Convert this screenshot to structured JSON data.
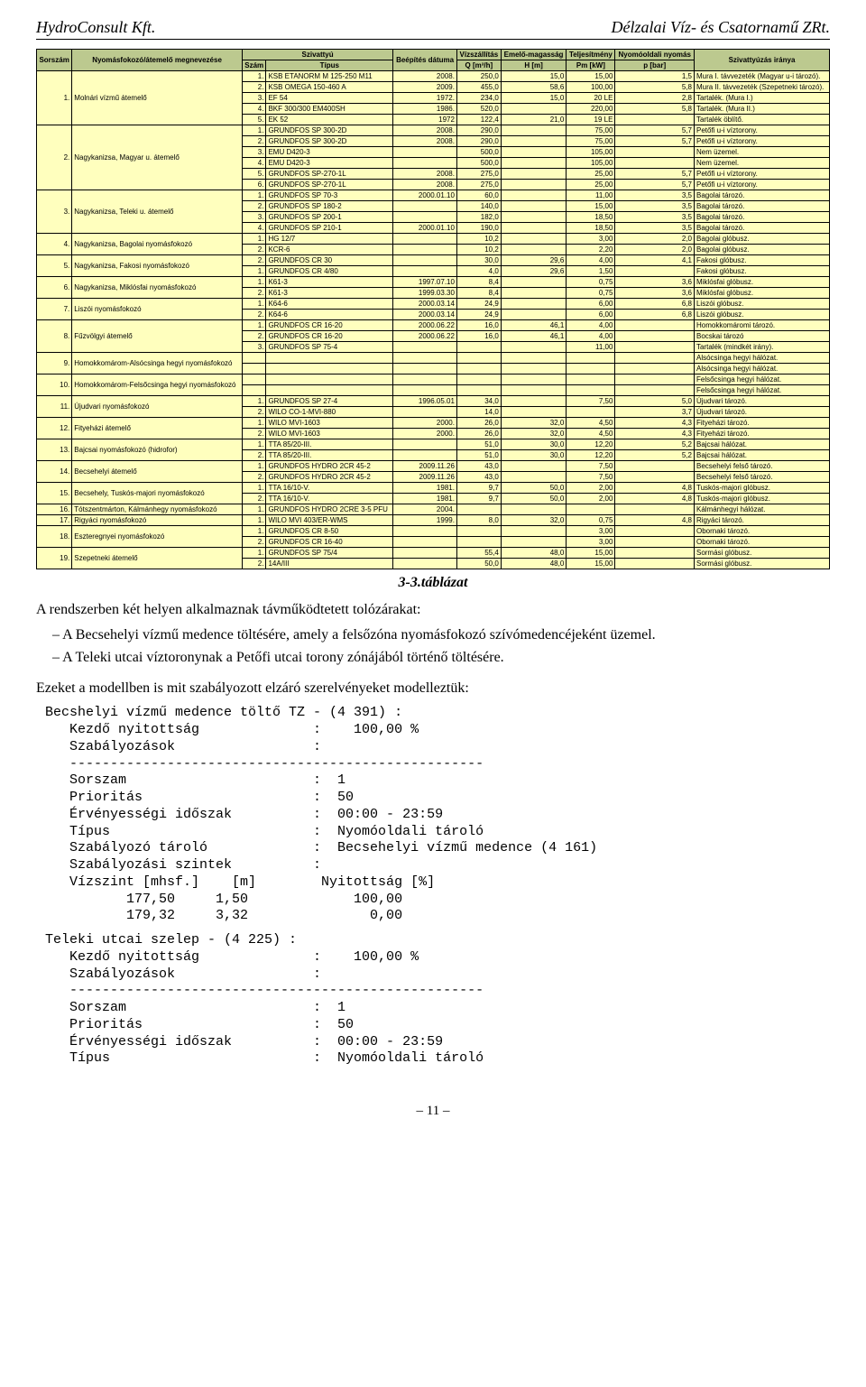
{
  "header": {
    "left": "HydroConsult Kft.",
    "right": "Délzalai Víz- és Csatornamű ZRt."
  },
  "table": {
    "head": {
      "sorszam": "Sorszám",
      "megnevezes": "Nyomásfokozó/átemelő megnevezése",
      "szivattyu": "Szivattyú",
      "szam": "Szám",
      "tipus": "Típus",
      "beepites": "Beépítés dátuma",
      "vizszallitas": "Vízszállítás",
      "q": "Q [m³/h]",
      "emelo": "Emelő-magasság",
      "h": "H [m]",
      "telj": "Teljesítmény",
      "p": "Pm [kW]",
      "nyomas": "Nyomóoldali nyomás",
      "pbar": "p [bar]",
      "irany": "Szivattyúzás iránya"
    },
    "groups": [
      {
        "n": "1.",
        "name": "Molnári vízmű átemelő",
        "rows": [
          {
            "sz": "1.",
            "tip": "KSB ETANORM M 125-250 M11",
            "dat": "2008.",
            "q": "250,0",
            "h": "15,0",
            "pk": "15,00",
            "pb": "1,5",
            "ir": "Mura I. távvezeték (Magyar u-i tározó)."
          },
          {
            "sz": "2.",
            "tip": "KSB OMEGA 150-460 A",
            "dat": "2009.",
            "q": "455,0",
            "h": "58,6",
            "pk": "100,00",
            "pb": "5,8",
            "ir": "Mura II. távvezeték (Szepetneki tározó)."
          },
          {
            "sz": "3.",
            "tip": "EF 54",
            "dat": "1972.",
            "q": "234,0",
            "h": "15,0",
            "pk": "20 LE",
            "pb": "2,8",
            "ir": "Tartalék. (Mura I.)"
          },
          {
            "sz": "4.",
            "tip": "BKF 300/300 EM400SH",
            "dat": "1986.",
            "q": "520,0",
            "h": "",
            "pk": "220,00",
            "pb": "5,8",
            "ir": "Tartalék. (Mura II.)"
          },
          {
            "sz": "5.",
            "tip": "EK 52",
            "dat": "1972",
            "q": "122,4",
            "h": "21,0",
            "pk": "19 LE",
            "pb": "",
            "ir": "Tartalék öblítő."
          }
        ]
      },
      {
        "n": "2.",
        "name": "Nagykanizsa, Magyar u. átemelő",
        "rows": [
          {
            "sz": "1.",
            "tip": "GRUNDFOS SP 300-2D",
            "dat": "2008.",
            "q": "290,0",
            "h": "",
            "pk": "75,00",
            "pb": "5,7",
            "ir": "Petőfi u-i víztorony."
          },
          {
            "sz": "2.",
            "tip": "GRUNDFOS SP 300-2D",
            "dat": "2008.",
            "q": "290,0",
            "h": "",
            "pk": "75,00",
            "pb": "5,7",
            "ir": "Petőfi u-i víztorony."
          },
          {
            "sz": "3.",
            "tip": "EMU D420-3",
            "dat": "",
            "q": "500,0",
            "h": "",
            "pk": "105,00",
            "pb": "",
            "ir": "Nem üzemel."
          },
          {
            "sz": "4.",
            "tip": "EMU D420-3",
            "dat": "",
            "q": "500,0",
            "h": "",
            "pk": "105,00",
            "pb": "",
            "ir": "Nem üzemel."
          },
          {
            "sz": "5.",
            "tip": "GRUNDFOS SP-270-1L",
            "dat": "2008.",
            "q": "275,0",
            "h": "",
            "pk": "25,00",
            "pb": "5,7",
            "ir": "Petőfi u-i víztorony."
          },
          {
            "sz": "6.",
            "tip": "GRUNDFOS SP-270-1L",
            "dat": "2008.",
            "q": "275,0",
            "h": "",
            "pk": "25,00",
            "pb": "5,7",
            "ir": "Petőfi u-i víztorony."
          }
        ]
      },
      {
        "n": "3.",
        "name": "Nagykanizsa, Teleki u. átemelő",
        "rows": [
          {
            "sz": "1.",
            "tip": "GRUNDFOS SP 70-3",
            "dat": "2000.01.10",
            "q": "60,0",
            "h": "",
            "pk": "11,00",
            "pb": "3,5",
            "ir": "Bagolai tározó."
          },
          {
            "sz": "2.",
            "tip": "GRUNDFOS SP 180-2",
            "dat": "",
            "q": "140,0",
            "h": "",
            "pk": "15,00",
            "pb": "3,5",
            "ir": "Bagolai tározó."
          },
          {
            "sz": "3.",
            "tip": "GRUNDFOS SP 200-1",
            "dat": "",
            "q": "182,0",
            "h": "",
            "pk": "18,50",
            "pb": "3,5",
            "ir": "Bagolai tározó."
          },
          {
            "sz": "4.",
            "tip": "GRUNDFOS SP 210-1",
            "dat": "2000.01.10",
            "q": "190,0",
            "h": "",
            "pk": "18,50",
            "pb": "3,5",
            "ir": "Bagolai tározó."
          }
        ]
      },
      {
        "n": "4.",
        "name": "Nagykanizsa, Bagolai nyomásfokozó",
        "rows": [
          {
            "sz": "1.",
            "tip": "HG 12/7",
            "dat": "",
            "q": "10,2",
            "h": "",
            "pk": "3,00",
            "pb": "2,0",
            "ir": "Bagolai glóbusz."
          },
          {
            "sz": "2.",
            "tip": "KCR-6",
            "dat": "",
            "q": "10,2",
            "h": "",
            "pk": "2,20",
            "pb": "2,0",
            "ir": "Bagolai glóbusz."
          }
        ]
      },
      {
        "n": "5.",
        "name": "Nagykanizsa, Fakosi nyomásfokozó",
        "rows": [
          {
            "sz": "2.",
            "tip": "GRUNDFOS CR 30",
            "dat": "",
            "q": "30,0",
            "h": "29,6",
            "pk": "4,00",
            "pb": "4,1",
            "ir": "Fakosi glóbusz."
          },
          {
            "sz": "1.",
            "tip": "GRUNDFOS CR 4/80",
            "dat": "",
            "q": "4,0",
            "h": "29,6",
            "pk": "1,50",
            "pb": "",
            "ir": "Fakosi glóbusz."
          }
        ]
      },
      {
        "n": "6.",
        "name": "Nagykanizsa, Miklósfai nyomásfokozó",
        "rows": [
          {
            "sz": "1.",
            "tip": "K61-3",
            "dat": "1997.07.10",
            "q": "8,4",
            "h": "",
            "pk": "0,75",
            "pb": "3,6",
            "ir": "Miklósfai glóbusz."
          },
          {
            "sz": "2.",
            "tip": "K61-3",
            "dat": "1999.03.30",
            "q": "8,4",
            "h": "",
            "pk": "0,75",
            "pb": "3,6",
            "ir": "Miklósfai glóbusz."
          }
        ]
      },
      {
        "n": "7.",
        "name": "Liszói nyomásfokozó",
        "rows": [
          {
            "sz": "1.",
            "tip": "K64-6",
            "dat": "2000.03.14",
            "q": "24,9",
            "h": "",
            "pk": "6,00",
            "pb": "6,8",
            "ir": "Liszói glóbusz."
          },
          {
            "sz": "2.",
            "tip": "K64-6",
            "dat": "2000.03.14",
            "q": "24,9",
            "h": "",
            "pk": "6,00",
            "pb": "6,8",
            "ir": "Liszói glóbusz."
          }
        ]
      },
      {
        "n": "8.",
        "name": "Fűzvölgyi átemelő",
        "rows": [
          {
            "sz": "1.",
            "tip": "GRUNDFOS CR 16-20",
            "dat": "2000.06.22",
            "q": "16,0",
            "h": "46,1",
            "pk": "4,00",
            "pb": "",
            "ir": "Homokkomáromi tározó."
          },
          {
            "sz": "2.",
            "tip": "GRUNDFOS CR 16-20",
            "dat": "2000.06.22",
            "q": "16,0",
            "h": "46,1",
            "pk": "4,00",
            "pb": "",
            "ir": "Bocskai tározó"
          },
          {
            "sz": "3.",
            "tip": "GRUNDFOS SP 75-4",
            "dat": "",
            "q": "",
            "h": "",
            "pk": "11,00",
            "pb": "",
            "ir": "Tartalék (mindkét irány)."
          }
        ]
      },
      {
        "n": "9.",
        "name": "Homokkomárom-Alsócsinga hegyi nyomásfokozó",
        "rows": [
          {
            "sz": "",
            "tip": "",
            "dat": "",
            "q": "",
            "h": "",
            "pk": "",
            "pb": "",
            "ir": "Alsócsinga hegyi hálózat."
          },
          {
            "sz": "",
            "tip": "",
            "dat": "",
            "q": "",
            "h": "",
            "pk": "",
            "pb": "",
            "ir": "Alsócsinga hegyi hálózat."
          }
        ]
      },
      {
        "n": "10.",
        "name": "Homokkomárom-Felsőcsinga hegyi nyomásfokozó",
        "rows": [
          {
            "sz": "",
            "tip": "",
            "dat": "",
            "q": "",
            "h": "",
            "pk": "",
            "pb": "",
            "ir": "Felsőcsinga hegyi hálózat."
          },
          {
            "sz": "",
            "tip": "",
            "dat": "",
            "q": "",
            "h": "",
            "pk": "",
            "pb": "",
            "ir": "Felsőcsinga hegyi hálózat."
          }
        ]
      },
      {
        "n": "11.",
        "name": "Újudvari nyomásfokozó",
        "rows": [
          {
            "sz": "1.",
            "tip": "GRUNDFOS SP 27-4",
            "dat": "1996.05.01",
            "q": "34,0",
            "h": "",
            "pk": "7,50",
            "pb": "5,0",
            "ir": "Újudvari tározó."
          },
          {
            "sz": "2.",
            "tip": "WILO CO-1-MVI-880",
            "dat": "",
            "q": "14,0",
            "h": "",
            "pk": "",
            "pb": "3,7",
            "ir": "Újudvari tározó."
          }
        ]
      },
      {
        "n": "12.",
        "name": "Fityeházi átemelő",
        "rows": [
          {
            "sz": "1.",
            "tip": "WILO MVI-1603",
            "dat": "2000.",
            "q": "26,0",
            "h": "32,0",
            "pk": "4,50",
            "pb": "4,3",
            "ir": "Fityeházi tározó."
          },
          {
            "sz": "2.",
            "tip": "WILO MVI-1603",
            "dat": "2000.",
            "q": "26,0",
            "h": "32,0",
            "pk": "4,50",
            "pb": "4,3",
            "ir": "Fityeházi tározó."
          }
        ]
      },
      {
        "n": "13.",
        "name": "Bajcsai nyomásfokozó (hidrofor)",
        "rows": [
          {
            "sz": "1.",
            "tip": "TTA 85/20-III.",
            "dat": "",
            "q": "51,0",
            "h": "30,0",
            "pk": "12,20",
            "pb": "5,2",
            "ir": "Bajcsai hálózat."
          },
          {
            "sz": "2.",
            "tip": "TTA 85/20-III.",
            "dat": "",
            "q": "51,0",
            "h": "30,0",
            "pk": "12,20",
            "pb": "5,2",
            "ir": "Bajcsai hálózat."
          }
        ]
      },
      {
        "n": "14.",
        "name": "Becsehelyi átemelő",
        "rows": [
          {
            "sz": "1.",
            "tip": "GRUNDFOS HYDRO 2CR 45-2",
            "dat": "2009.11.26",
            "q": "43,0",
            "h": "",
            "pk": "7,50",
            "pb": "",
            "ir": "Becsehelyi felső tározó."
          },
          {
            "sz": "2.",
            "tip": "GRUNDFOS HYDRO 2CR 45-2",
            "dat": "2009.11.26",
            "q": "43,0",
            "h": "",
            "pk": "7,50",
            "pb": "",
            "ir": "Becsehelyi felső tározó."
          }
        ]
      },
      {
        "n": "15.",
        "name": "Becsehely, Tuskós-majori nyomásfokozó",
        "rows": [
          {
            "sz": "1.",
            "tip": "TTA 16/10-V.",
            "dat": "1981.",
            "q": "9,7",
            "h": "50,0",
            "pk": "2,00",
            "pb": "4,8",
            "ir": "Tuskós-majori glóbusz."
          },
          {
            "sz": "2.",
            "tip": "TTA 16/10-V.",
            "dat": "1981.",
            "q": "9,7",
            "h": "50,0",
            "pk": "2,00",
            "pb": "4,8",
            "ir": "Tuskós-majori glóbusz."
          }
        ]
      },
      {
        "n": "16.",
        "name": "Tótszentmárton, Kálmánhegy nyomásfokozó",
        "rows": [
          {
            "sz": "1.",
            "tip": "GRUNDFOS HYDRO 2CRE 3-5 PFU",
            "dat": "2004.",
            "q": "",
            "h": "",
            "pk": "",
            "pb": "",
            "ir": "Kálmánhegyi hálózat."
          }
        ]
      },
      {
        "n": "17.",
        "name": "Rigyáci nyomásfokozó",
        "rows": [
          {
            "sz": "1.",
            "tip": "WILO MVI 403/ER-WMS",
            "dat": "1999.",
            "q": "8,0",
            "h": "32,0",
            "pk": "0,75",
            "pb": "4,8",
            "ir": "Rigyáci tározó."
          }
        ]
      },
      {
        "n": "18.",
        "name": "Eszteregnyei nyomásfokozó",
        "rows": [
          {
            "sz": "1.",
            "tip": "GRUNDFOS CR 8-50",
            "dat": "",
            "q": "",
            "h": "",
            "pk": "3,00",
            "pb": "",
            "ir": "Obornaki tározó."
          },
          {
            "sz": "2.",
            "tip": "GRUNDFOS CR 16-40",
            "dat": "",
            "q": "",
            "h": "",
            "pk": "3,00",
            "pb": "",
            "ir": "Obornaki tározó."
          }
        ]
      },
      {
        "n": "19.",
        "name": "Szepetneki átemelő",
        "rows": [
          {
            "sz": "1.",
            "tip": "GRUNDFOS SP 75/4",
            "dat": "",
            "q": "55,4",
            "h": "48,0",
            "pk": "15,00",
            "pb": "",
            "ir": "Sormási glóbusz."
          },
          {
            "sz": "2.",
            "tip": "14A/III",
            "dat": "",
            "q": "50,0",
            "h": "48,0",
            "pk": "15,00",
            "pb": "",
            "ir": "Sormási glóbusz."
          }
        ]
      }
    ]
  },
  "caption": "3-3.táblázat",
  "para1": "A rendszerben két helyen alkalmaznak távműködtetett tolózárakat:",
  "bullets": [
    "A Becsehelyi vízmű medence töltésére, amely a felsőzóna nyomásfokozó szívómedencéjeként üzemel.",
    "A Teleki utcai víztoronynak a Petőfi utcai torony zónájából történő töltésére."
  ],
  "para2": "Ezeket a modellben is mit szabályozott elzáró szerelvényeket modelleztük:",
  "mono1": "Becshelyi vízmű medence töltő TZ - (4 391) :\n   Kezdő nyitottság              :    100,00 %\n   Szabályozások                 :\n   ---------------------------------------------------\n   Sorszam                       :  1\n   Prioritás                     :  50\n   Érvényességi időszak          :  00:00 - 23:59\n   Típus                         :  Nyomóoldali tároló\n   Szabályozó tároló             :  Becsehelyi vízmű medence (4 161)\n   Szabályozási szintek          :\n   Vízszint [mhsf.]    [m]        Nyitottság [%]\n          177,50     1,50             100,00\n          179,32     3,32               0,00",
  "mono2": "Teleki utcai szelep - (4 225) :\n   Kezdő nyitottság              :    100,00 %\n   Szabályozások                 :\n   ---------------------------------------------------\n   Sorszam                       :  1\n   Prioritás                     :  50\n   Érvényességi időszak          :  00:00 - 23:59\n   Típus                         :  Nyomóoldali tároló",
  "page": "– 11 –"
}
